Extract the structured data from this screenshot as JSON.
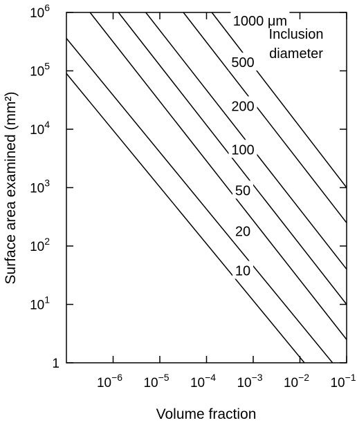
{
  "chart_data": {
    "type": "line",
    "xlabel": "Volume fraction",
    "ylabel": "Surface area examined (mm²)",
    "x_scale": "log",
    "y_scale": "log",
    "xlim": [
      1e-07,
      0.1
    ],
    "ylim": [
      1,
      1000000
    ],
    "x_ticks": [
      {
        "value": 1e-06,
        "base": "10",
        "exp": "−6"
      },
      {
        "value": 1e-05,
        "base": "10",
        "exp": "−5"
      },
      {
        "value": 0.0001,
        "base": "10",
        "exp": "−4"
      },
      {
        "value": 0.001,
        "base": "10",
        "exp": "−3"
      },
      {
        "value": 0.01,
        "base": "10",
        "exp": "−2"
      },
      {
        "value": 0.1,
        "base": "10",
        "exp": "−1"
      }
    ],
    "y_ticks": [
      {
        "value": 1,
        "base": "1",
        "exp": ""
      },
      {
        "value": 10,
        "base": "10",
        "exp": "1"
      },
      {
        "value": 100,
        "base": "10",
        "exp": "2"
      },
      {
        "value": 1000,
        "base": "10",
        "exp": "3"
      },
      {
        "value": 10000,
        "base": "10",
        "exp": "4"
      },
      {
        "value": 100000,
        "base": "10",
        "exp": "5"
      },
      {
        "value": 1000000,
        "base": "10",
        "exp": "6"
      }
    ],
    "grid": false,
    "legend_title": [
      "Inclusion",
      "diameter"
    ],
    "series": [
      {
        "name": "10",
        "x": [
          1e-07,
          0.0125
        ],
        "y": [
          90000,
          1
        ]
      },
      {
        "name": "20",
        "x": [
          1e-07,
          0.05
        ],
        "y": [
          360000,
          1
        ]
      },
      {
        "name": "50",
        "x": [
          3.2e-07,
          0.1
        ],
        "y": [
          1000000,
          2.5
        ]
      },
      {
        "name": "100",
        "x": [
          1.3e-06,
          0.1
        ],
        "y": [
          1000000,
          10
        ]
      },
      {
        "name": "200",
        "x": [
          5e-06,
          0.1
        ],
        "y": [
          1000000,
          40
        ]
      },
      {
        "name": "500",
        "x": [
          3.2e-05,
          0.1
        ],
        "y": [
          1000000,
          250
        ]
      },
      {
        "name": "1000 μm",
        "x": [
          0.00013,
          0.1
        ],
        "y": [
          1000000,
          1000
        ]
      }
    ]
  }
}
